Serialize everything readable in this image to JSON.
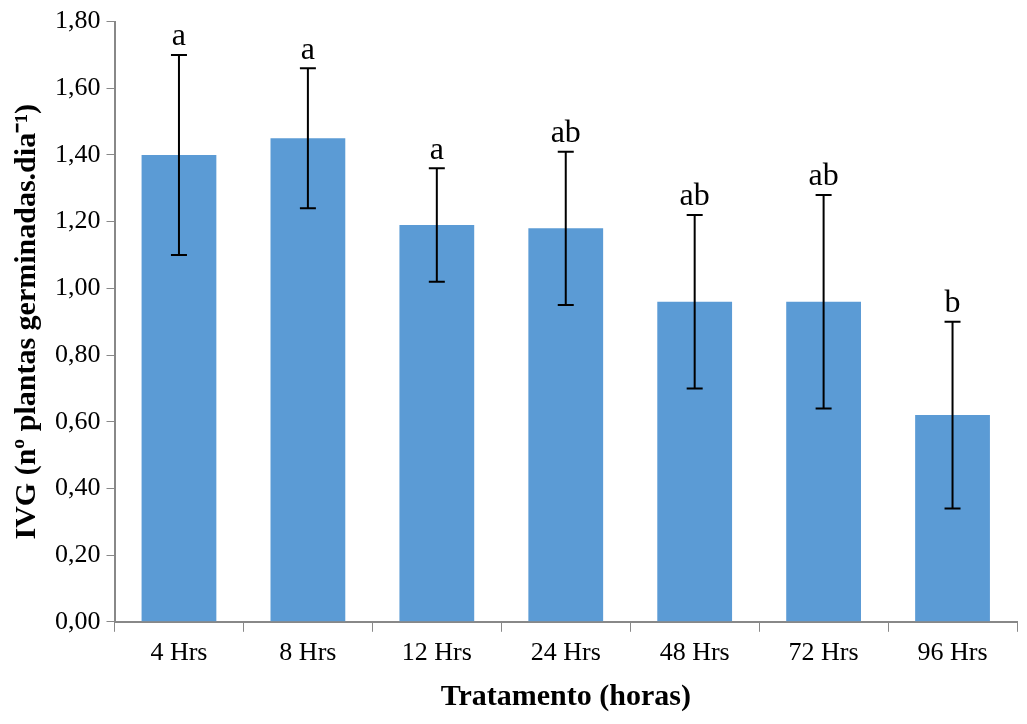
{
  "chart_data": {
    "type": "bar",
    "xlabel": "Tratamento (horas)",
    "ylabel": "IVG (nº plantas germinadas.dia⁻¹)",
    "categories": [
      "4 Hrs",
      "8 Hrs",
      "12 Hrs",
      "24 Hrs",
      "48 Hrs",
      "72 Hrs",
      "96 Hrs"
    ],
    "values": [
      1.4,
      1.45,
      1.19,
      1.18,
      0.96,
      0.96,
      0.62
    ],
    "errors": [
      0.3,
      0.21,
      0.17,
      0.23,
      0.26,
      0.32,
      0.28
    ],
    "color": "#5b9bd5",
    "ylim": [
      0,
      1.8
    ],
    "yticks": [
      {
        "value": 0,
        "label": "0,00"
      },
      {
        "value": 0.2,
        "label": "0,20"
      },
      {
        "value": 0.4,
        "label": "0,40"
      },
      {
        "value": 0.6,
        "label": "0,60"
      },
      {
        "value": 0.8,
        "label": "0,80"
      },
      {
        "value": 1,
        "label": "1,00"
      },
      {
        "value": 1.2,
        "label": "1,20"
      },
      {
        "value": 1.4,
        "label": "1,40"
      },
      {
        "value": 1.6,
        "label": "1,60"
      },
      {
        "value": 1.8,
        "label": "1,80"
      }
    ],
    "grid": false,
    "legend": false,
    "annotations": [
      {
        "text": "a",
        "x": "4 Hrs",
        "y": 1.7
      },
      {
        "text": "a",
        "x": "8 Hrs",
        "y": 1.66
      },
      {
        "text": "a",
        "x": "12 Hrs",
        "y": 1.36
      },
      {
        "text": "ab",
        "x": "24 Hrs",
        "y": 1.41
      },
      {
        "text": "ab",
        "x": "48 Hrs",
        "y": 1.22
      },
      {
        "text": "ab",
        "x": "72 Hrs",
        "y": 1.28
      },
      {
        "text": "b",
        "x": "96 Hrs",
        "y": 0.9
      }
    ]
  }
}
